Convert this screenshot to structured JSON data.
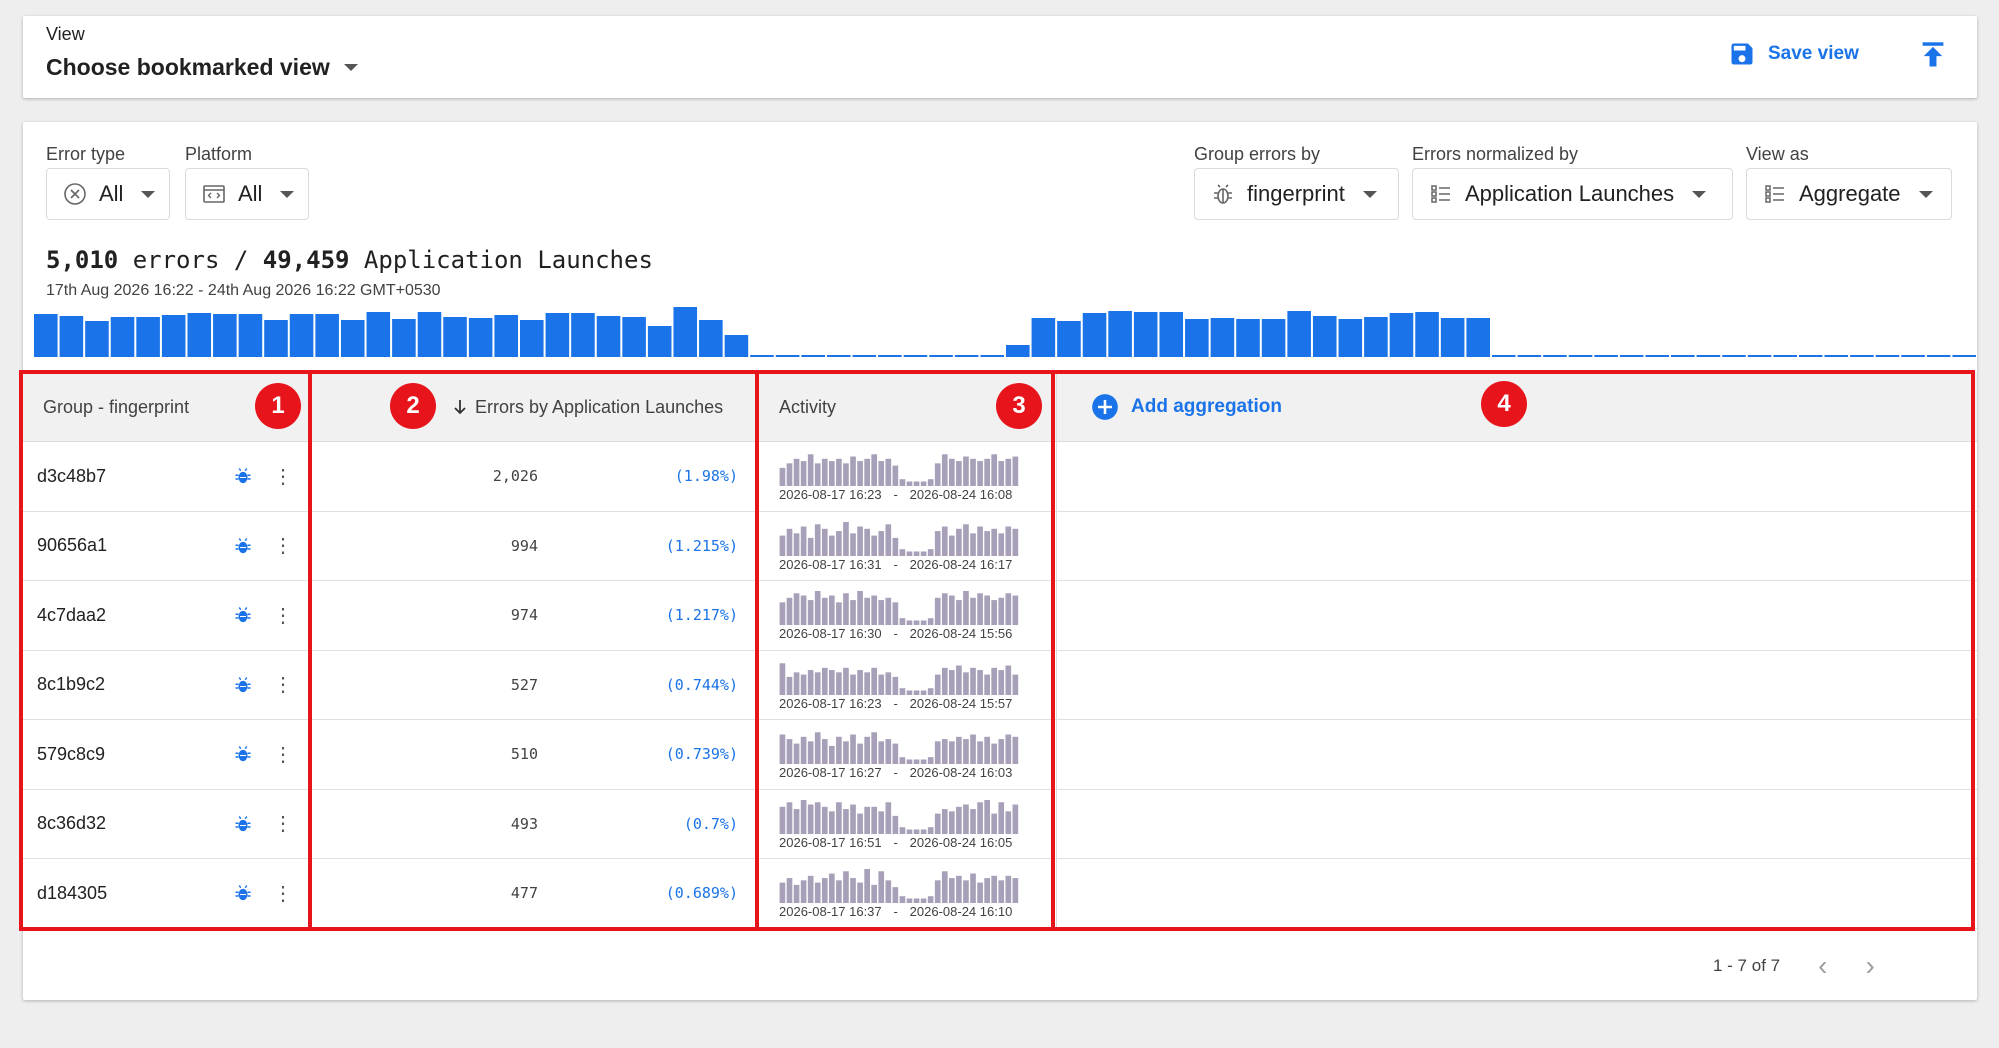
{
  "view_bar": {
    "label": "View",
    "selected": "Choose bookmarked view",
    "save_label": "Save view",
    "save_icon": "floppy-disk-icon",
    "upload_icon": "upload-icon"
  },
  "filters": {
    "error_type": {
      "label": "Error type",
      "value": "All",
      "icon": "cancel-circle-icon"
    },
    "platform": {
      "label": "Platform",
      "value": "All",
      "icon": "code-window-icon"
    },
    "group_by": {
      "label": "Group errors by",
      "value": "fingerprint",
      "icon": "bug-icon"
    },
    "normalized_by": {
      "label": "Errors normalized by",
      "value": "Application Launches",
      "icon": "list-icon"
    },
    "view_as": {
      "label": "View as",
      "value": "Aggregate",
      "icon": "list-icon"
    }
  },
  "summary": {
    "errors": "5,010",
    "errors_word": "errors",
    "separator": "/",
    "launches": "49,459",
    "launches_word": "Application Launches",
    "date_range": "17th Aug 2026 16:22 - 24th Aug 2026 16:22 GMT+0530"
  },
  "histogram": {
    "color": "#1a73e8",
    "values": [
      43,
      41,
      36,
      40,
      40,
      42,
      44,
      43,
      43,
      37,
      43,
      43,
      37,
      45,
      38,
      45,
      40,
      39,
      42,
      37,
      44,
      44,
      41,
      40,
      31,
      50,
      37,
      22,
      2,
      2,
      2,
      2,
      2,
      2,
      2,
      2,
      2,
      2,
      12,
      39,
      36,
      44,
      46,
      45,
      45,
      38,
      39,
      38,
      38,
      46,
      41,
      38,
      40,
      44,
      45,
      39,
      39,
      2,
      2,
      2,
      2,
      2,
      2,
      2,
      2,
      2,
      2,
      2,
      2,
      2,
      2,
      2,
      2,
      2,
      2,
      2
    ]
  },
  "table": {
    "headers": {
      "group": "Group - fingerprint",
      "errors": "Errors by Application Launches",
      "activity": "Activity",
      "add_aggregation": "Add aggregation"
    },
    "rows": [
      {
        "hash": "d3c48b7",
        "count": "2,026",
        "pct": "(1.98%)",
        "start": "2026-08-17 16:23",
        "end": "2026-08-24 16:08",
        "spark": [
          8,
          10,
          12,
          11,
          14,
          10,
          12,
          11,
          12,
          10,
          13,
          11,
          12,
          14,
          11,
          12,
          9,
          3,
          2,
          2,
          2,
          3,
          10,
          14,
          12,
          11,
          13,
          12,
          11,
          12,
          14,
          11,
          12,
          13
        ]
      },
      {
        "hash": "90656a1",
        "count": "994",
        "pct": "(1.215%)",
        "start": "2026-08-17 16:31",
        "end": "2026-08-24 16:17",
        "spark": [
          9,
          12,
          10,
          13,
          8,
          14,
          12,
          9,
          11,
          15,
          10,
          13,
          12,
          9,
          11,
          14,
          8,
          3,
          2,
          2,
          2,
          3,
          11,
          13,
          9,
          12,
          14,
          10,
          13,
          11,
          12,
          10,
          13,
          12
        ]
      },
      {
        "hash": "4c7daa2",
        "count": "974",
        "pct": "(1.217%)",
        "start": "2026-08-17 16:30",
        "end": "2026-08-24 15:56",
        "spark": [
          10,
          12,
          14,
          13,
          11,
          15,
          12,
          13,
          10,
          14,
          11,
          15,
          12,
          13,
          11,
          12,
          10,
          3,
          2,
          2,
          2,
          3,
          12,
          14,
          13,
          11,
          15,
          12,
          14,
          13,
          11,
          12,
          14,
          13
        ]
      },
      {
        "hash": "8c1b9c2",
        "count": "527",
        "pct": "(0.744%)",
        "start": "2026-08-17 16:23",
        "end": "2026-08-24 15:57",
        "spark": [
          14,
          8,
          10,
          9,
          11,
          10,
          12,
          11,
          10,
          12,
          9,
          11,
          10,
          12,
          9,
          10,
          8,
          3,
          2,
          2,
          2,
          3,
          9,
          12,
          11,
          13,
          10,
          12,
          11,
          9,
          12,
          11,
          13,
          9
        ]
      },
      {
        "hash": "579c8c9",
        "count": "510",
        "pct": "(0.739%)",
        "start": "2026-08-17 16:27",
        "end": "2026-08-24 16:03",
        "spark": [
          13,
          11,
          9,
          12,
          10,
          14,
          11,
          8,
          12,
          10,
          13,
          9,
          12,
          14,
          10,
          11,
          9,
          3,
          2,
          2,
          2,
          3,
          10,
          11,
          10,
          12,
          11,
          13,
          10,
          12,
          9,
          11,
          13,
          12
        ]
      },
      {
        "hash": "8c36d32",
        "count": "493",
        "pct": "(0.7%)",
        "start": "2026-08-17 16:51",
        "end": "2026-08-24 16:05",
        "spark": [
          12,
          14,
          11,
          15,
          13,
          14,
          12,
          10,
          14,
          11,
          13,
          9,
          12,
          12,
          10,
          14,
          8,
          3,
          2,
          2,
          2,
          3,
          9,
          11,
          10,
          12,
          13,
          11,
          14,
          15,
          9,
          14,
          10,
          13
        ]
      },
      {
        "hash": "d184305",
        "count": "477",
        "pct": "(0.689%)",
        "start": "2026-08-17 16:37",
        "end": "2026-08-24 16:10",
        "spark": [
          9,
          11,
          8,
          10,
          12,
          9,
          11,
          13,
          10,
          14,
          11,
          9,
          15,
          8,
          14,
          10,
          7,
          3,
          2,
          2,
          2,
          3,
          10,
          14,
          11,
          12,
          10,
          13,
          9,
          11,
          12,
          10,
          12,
          11
        ]
      }
    ],
    "spark_color": "#a8a0b8"
  },
  "pagination": {
    "text": "1 - 7 of 7",
    "prev_icon": "chevron-left-icon",
    "next_icon": "chevron-right-icon"
  },
  "annotations": {
    "badges": [
      "1",
      "2",
      "3",
      "4"
    ],
    "color": "#e8141c"
  }
}
